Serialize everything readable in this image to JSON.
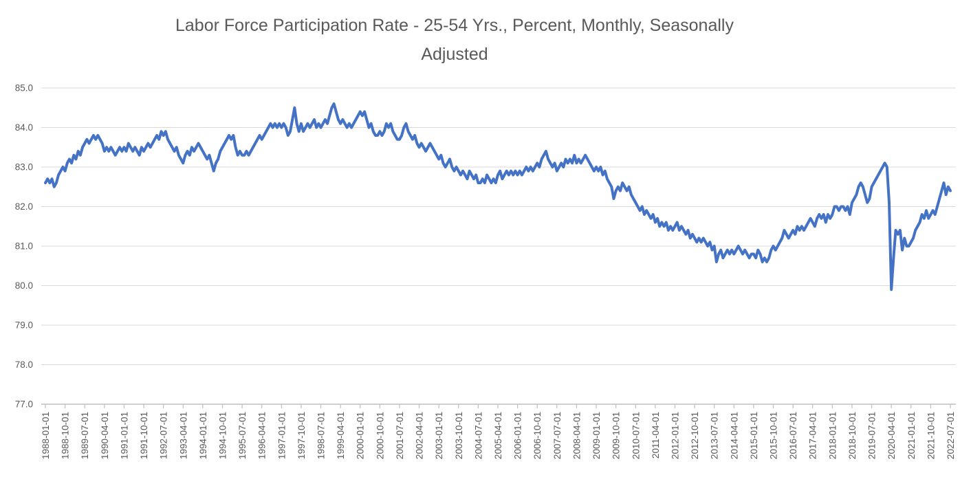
{
  "chart_data": {
    "type": "line",
    "title": "Labor Force Participation Rate - 25-54 Yrs., Percent, Monthly, Seasonally Adjusted",
    "title_lines": [
      "Labor Force Participation Rate - 25-54 Yrs., Percent, Monthly, Seasonally",
      "Adjusted"
    ],
    "xlabel": "",
    "ylabel": "",
    "legend": "none",
    "grid": "horizontal",
    "ylim": [
      77.0,
      85.0
    ],
    "y_tick_labels": [
      "85.0",
      "84.0",
      "83.0",
      "82.0",
      "81.0",
      "80.0",
      "79.0",
      "78.0",
      "77.0"
    ],
    "x_start_month": "1988-01",
    "x_end_month": "2022-07",
    "x_tick_interval_months": 9,
    "x_tick_labels": [
      "1988-01-01",
      "1988-10-01",
      "1989-07-01",
      "1990-04-01",
      "1991-01-01",
      "1991-10-01",
      "1992-07-01",
      "1993-04-01",
      "1994-01-01",
      "1994-10-01",
      "1995-07-01",
      "1996-04-01",
      "1997-01-01",
      "1997-10-01",
      "1998-07-01",
      "1999-04-01",
      "2000-01-01",
      "2000-10-01",
      "2001-07-01",
      "2002-04-01",
      "2003-01-01",
      "2003-10-01",
      "2004-07-01",
      "2005-04-01",
      "2006-01-01",
      "2006-10-01",
      "2007-07-01",
      "2008-04-01",
      "2009-01-01",
      "2009-10-01",
      "2010-07-01",
      "2011-04-01",
      "2012-01-01",
      "2012-10-01",
      "2013-07-01",
      "2014-04-01",
      "2015-01-01",
      "2015-10-01",
      "2016-07-01",
      "2017-04-01",
      "2018-01-01",
      "2018-10-01",
      "2019-07-01",
      "2020-04-01",
      "2021-01-01",
      "2021-10-01",
      "2022-07-01"
    ],
    "values": [
      82.6,
      82.7,
      82.6,
      82.7,
      82.5,
      82.6,
      82.8,
      82.9,
      83.0,
      82.9,
      83.1,
      83.2,
      83.1,
      83.3,
      83.2,
      83.4,
      83.3,
      83.5,
      83.6,
      83.7,
      83.6,
      83.7,
      83.8,
      83.7,
      83.8,
      83.7,
      83.6,
      83.4,
      83.5,
      83.4,
      83.5,
      83.4,
      83.3,
      83.4,
      83.5,
      83.4,
      83.5,
      83.4,
      83.6,
      83.5,
      83.4,
      83.5,
      83.4,
      83.3,
      83.5,
      83.4,
      83.5,
      83.6,
      83.5,
      83.6,
      83.7,
      83.8,
      83.7,
      83.9,
      83.8,
      83.9,
      83.7,
      83.6,
      83.5,
      83.4,
      83.5,
      83.3,
      83.2,
      83.1,
      83.3,
      83.4,
      83.3,
      83.5,
      83.4,
      83.5,
      83.6,
      83.5,
      83.4,
      83.3,
      83.2,
      83.3,
      83.1,
      82.9,
      83.1,
      83.2,
      83.4,
      83.5,
      83.6,
      83.7,
      83.8,
      83.7,
      83.8,
      83.5,
      83.3,
      83.4,
      83.3,
      83.3,
      83.4,
      83.3,
      83.4,
      83.5,
      83.6,
      83.7,
      83.8,
      83.7,
      83.8,
      83.9,
      84.0,
      84.1,
      84.0,
      84.1,
      84.0,
      84.1,
      84.0,
      84.1,
      84.0,
      83.8,
      83.9,
      84.2,
      84.5,
      84.1,
      83.9,
      84.1,
      83.9,
      84.0,
      84.1,
      84.0,
      84.1,
      84.2,
      84.0,
      84.1,
      84.0,
      84.1,
      84.2,
      84.1,
      84.3,
      84.5,
      84.6,
      84.4,
      84.2,
      84.1,
      84.2,
      84.1,
      84.0,
      84.1,
      84.0,
      84.1,
      84.2,
      84.3,
      84.4,
      84.3,
      84.4,
      84.2,
      84.0,
      84.1,
      83.9,
      83.8,
      83.8,
      83.9,
      83.8,
      83.9,
      84.1,
      84.0,
      84.1,
      83.9,
      83.8,
      83.7,
      83.7,
      83.8,
      84.0,
      84.1,
      83.9,
      83.8,
      83.7,
      83.8,
      83.6,
      83.5,
      83.6,
      83.5,
      83.4,
      83.5,
      83.6,
      83.5,
      83.4,
      83.3,
      83.2,
      83.3,
      83.1,
      83.0,
      83.1,
      83.2,
      83.0,
      82.9,
      83.0,
      82.9,
      82.8,
      82.9,
      82.8,
      82.7,
      82.9,
      82.8,
      82.7,
      82.8,
      82.6,
      82.6,
      82.7,
      82.6,
      82.8,
      82.7,
      82.6,
      82.7,
      82.6,
      82.8,
      82.9,
      82.7,
      82.8,
      82.9,
      82.8,
      82.9,
      82.8,
      82.9,
      82.8,
      82.9,
      82.8,
      82.9,
      83.0,
      82.9,
      83.0,
      82.9,
      83.0,
      83.1,
      83.0,
      83.2,
      83.3,
      83.4,
      83.2,
      83.1,
      83.0,
      83.1,
      82.9,
      83.0,
      83.1,
      83.0,
      83.2,
      83.1,
      83.2,
      83.1,
      83.3,
      83.1,
      83.2,
      83.1,
      83.2,
      83.3,
      83.2,
      83.1,
      83.0,
      82.9,
      83.0,
      82.9,
      83.0,
      82.8,
      82.9,
      82.7,
      82.6,
      82.5,
      82.2,
      82.4,
      82.5,
      82.4,
      82.6,
      82.5,
      82.4,
      82.5,
      82.3,
      82.2,
      82.1,
      82.0,
      81.9,
      82.0,
      81.8,
      81.9,
      81.8,
      81.7,
      81.8,
      81.6,
      81.7,
      81.5,
      81.6,
      81.5,
      81.6,
      81.4,
      81.5,
      81.4,
      81.5,
      81.6,
      81.4,
      81.5,
      81.4,
      81.3,
      81.4,
      81.2,
      81.3,
      81.2,
      81.1,
      81.2,
      81.1,
      81.2,
      81.1,
      81.0,
      81.1,
      80.9,
      81.0,
      80.6,
      80.8,
      80.9,
      80.7,
      80.8,
      80.9,
      80.8,
      80.9,
      80.8,
      80.9,
      81.0,
      80.9,
      80.8,
      80.9,
      80.8,
      80.7,
      80.8,
      80.8,
      80.7,
      80.9,
      80.8,
      80.6,
      80.7,
      80.6,
      80.7,
      80.9,
      81.0,
      80.9,
      81.0,
      81.1,
      81.2,
      81.4,
      81.3,
      81.2,
      81.3,
      81.4,
      81.3,
      81.5,
      81.4,
      81.5,
      81.4,
      81.5,
      81.6,
      81.7,
      81.6,
      81.5,
      81.7,
      81.8,
      81.7,
      81.8,
      81.6,
      81.8,
      81.7,
      81.8,
      82.0,
      82.0,
      81.9,
      82.0,
      82.0,
      81.9,
      82.0,
      81.8,
      82.1,
      82.2,
      82.3,
      82.5,
      82.6,
      82.5,
      82.3,
      82.1,
      82.2,
      82.5,
      82.6,
      82.7,
      82.8,
      82.9,
      83.0,
      83.1,
      83.0,
      82.1,
      79.9,
      80.7,
      81.4,
      81.3,
      81.4,
      80.9,
      81.2,
      81.0,
      81.0,
      81.1,
      81.2,
      81.4,
      81.5,
      81.6,
      81.8,
      81.7,
      81.9,
      81.7,
      81.8,
      81.9,
      81.8,
      82.0,
      82.2,
      82.4,
      82.6,
      82.3,
      82.5,
      82.4
    ],
    "colors": {
      "line": "#4472C4",
      "gridline": "#D9D9D9",
      "axis": "#BFBFBF",
      "text": "#595959",
      "background": "#FFFFFF"
    }
  }
}
